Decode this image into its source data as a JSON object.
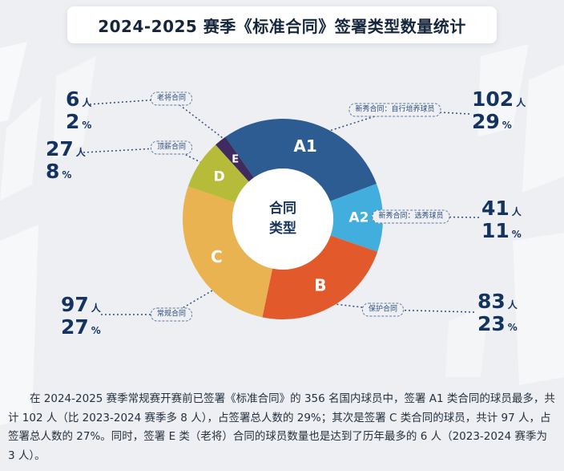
{
  "header": {
    "title": "2024-2025 赛季《标准合同》签署类型数量统计"
  },
  "chart_data": {
    "type": "pie",
    "donut": true,
    "title": "合同类型",
    "center_label_lines": [
      "合同",
      "类型"
    ],
    "start_angle_deg_from_top": -35,
    "units": {
      "person": "人",
      "percent": "%"
    },
    "segments": [
      {
        "label": "A1",
        "count": 102,
        "percent": 29,
        "color": "#2d5c92",
        "category": "新秀合同：自行培养球员"
      },
      {
        "label": "A2",
        "count": 41,
        "percent": 11,
        "color": "#41aede",
        "category": "新秀合同：选秀球员"
      },
      {
        "label": "B",
        "count": 83,
        "percent": 23,
        "color": "#e2592c",
        "category": "保护合同"
      },
      {
        "label": "C",
        "count": 97,
        "percent": 27,
        "color": "#eab352",
        "category": "常规合同"
      },
      {
        "label": "D",
        "count": 27,
        "percent": 8,
        "color": "#b6bc3a",
        "category": "顶薪合同"
      },
      {
        "label": "E",
        "count": 6,
        "percent": 2,
        "color": "#402b5e",
        "category": "老将合同"
      }
    ]
  },
  "footer": {
    "paragraph": "在 2024-2025 赛季常规赛开赛前已签署《标准合同》的 356 名国内球员中，签署 A1 类合同的球员最多，共计 102 人（比 2023-2024 赛季多 8 人），占签署总人数的 29%；其次是签署 C 类合同的球员，共计 97 人，占签署总人数的 27%。同时，签署 E 类（老将）合同的球员数量也是达到了历年最多的 6 人（2023-2024 赛季为 3 人）。"
  }
}
